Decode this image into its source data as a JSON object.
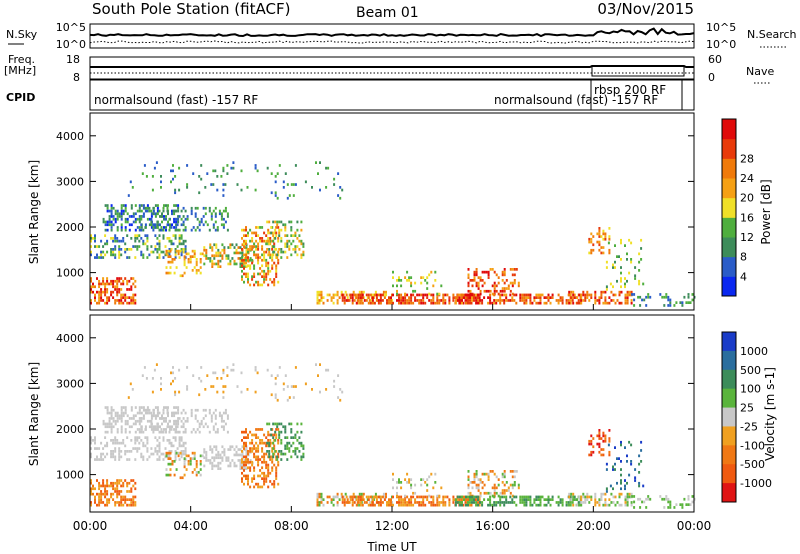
{
  "header": {
    "station": "South Pole Station (fitACF)",
    "beam": "Beam 01",
    "date": "03/Nov/2015"
  },
  "status": {
    "nsky_label": "N.Sky",
    "nsearch_label": "N.Search",
    "freq_label": "Freq.",
    "freq_unit": "[MHz]",
    "nave_label": "Nave",
    "cpid_label": "CPID",
    "noise_left_ticks": [
      "10^5",
      "10^0"
    ],
    "noise_right_ticks": [
      "10^5",
      "10^0"
    ],
    "freq_ticks": [
      "18",
      "8"
    ],
    "nave_ticks": [
      "60",
      "0"
    ],
    "cpid_segments": [
      {
        "label": "normalsound (fast) -157 RF"
      },
      {
        "label": "normalsound (fast) -157 RF"
      },
      {
        "label": "rbsp 200 RF"
      }
    ]
  },
  "chart_data": [
    {
      "type": "heatmap",
      "quantity": "Power",
      "ylabel": "Slant Range [km]",
      "ylim": [
        180,
        4500
      ],
      "yticks": [
        1000,
        2000,
        3000,
        4000
      ],
      "xlim": [
        0,
        24
      ],
      "colorbar": {
        "label": "Power [dB]",
        "ticks": [
          "4",
          "8",
          "12",
          "16",
          "20",
          "24",
          "28"
        ],
        "colors": [
          "#0a28f0",
          "#2a5cc8",
          "#3d8c5a",
          "#4fae3e",
          "#f0e028",
          "#f5a014",
          "#f07a0a",
          "#e83a0a",
          "#e00a0a"
        ]
      }
    },
    {
      "type": "heatmap",
      "quantity": "Velocity",
      "ylabel": "Slant Range [km]",
      "ylim": [
        180,
        4500
      ],
      "yticks": [
        1000,
        2000,
        3000,
        4000
      ],
      "xlim": [
        0,
        24
      ],
      "xlabel": "Time UT",
      "xticks": [
        "00:00",
        "04:00",
        "08:00",
        "12:00",
        "16:00",
        "20:00",
        "00:00"
      ],
      "colorbar": {
        "label": "Velocity [m s-1]",
        "ticks": [
          "1000",
          "500",
          "100",
          "25",
          "-25",
          "-100",
          "-500",
          "-1000"
        ],
        "colors": [
          "#1a3cc8",
          "#2a6e9e",
          "#3c8c5a",
          "#5ab43c",
          "#c8c8c8",
          "#f0a020",
          "#f07814",
          "#f05a10",
          "#e01414"
        ]
      }
    }
  ]
}
